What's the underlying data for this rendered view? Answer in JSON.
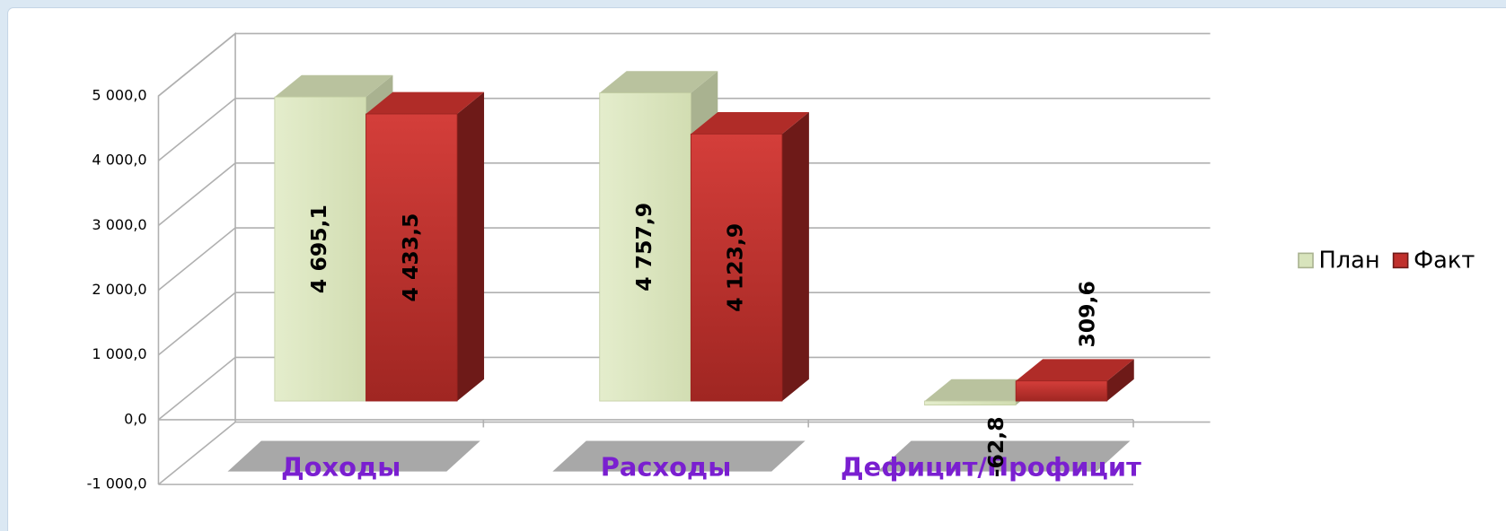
{
  "chart_data": {
    "type": "bar3d",
    "categories": [
      "Доходы",
      "Расходы",
      "Дефицит/Профицит"
    ],
    "series": [
      {
        "name": "План",
        "color": "#d8e4bc",
        "values": [
          4695.1,
          4757.9,
          -62.8
        ],
        "value_labels": [
          "4 695,1",
          "4 757,9",
          "-62,8"
        ]
      },
      {
        "name": "Факт",
        "color": "#c0302c",
        "values": [
          4433.5,
          4123.9,
          309.6
        ],
        "value_labels": [
          "4 433,5",
          "4 123,9",
          "309,6"
        ]
      }
    ],
    "ylim": [
      -1000,
      5000
    ],
    "yticks": [
      {
        "value": -1000,
        "label": "-1 000,0"
      },
      {
        "value": 0,
        "label": "0,0"
      },
      {
        "value": 1000,
        "label": "1 000,0"
      },
      {
        "value": 2000,
        "label": "2 000,0"
      },
      {
        "value": 3000,
        "label": "3 000,0"
      },
      {
        "value": 4000,
        "label": "4 000,0"
      },
      {
        "value": 5000,
        "label": "5 000,0"
      }
    ],
    "grid": true,
    "legend": "right"
  }
}
